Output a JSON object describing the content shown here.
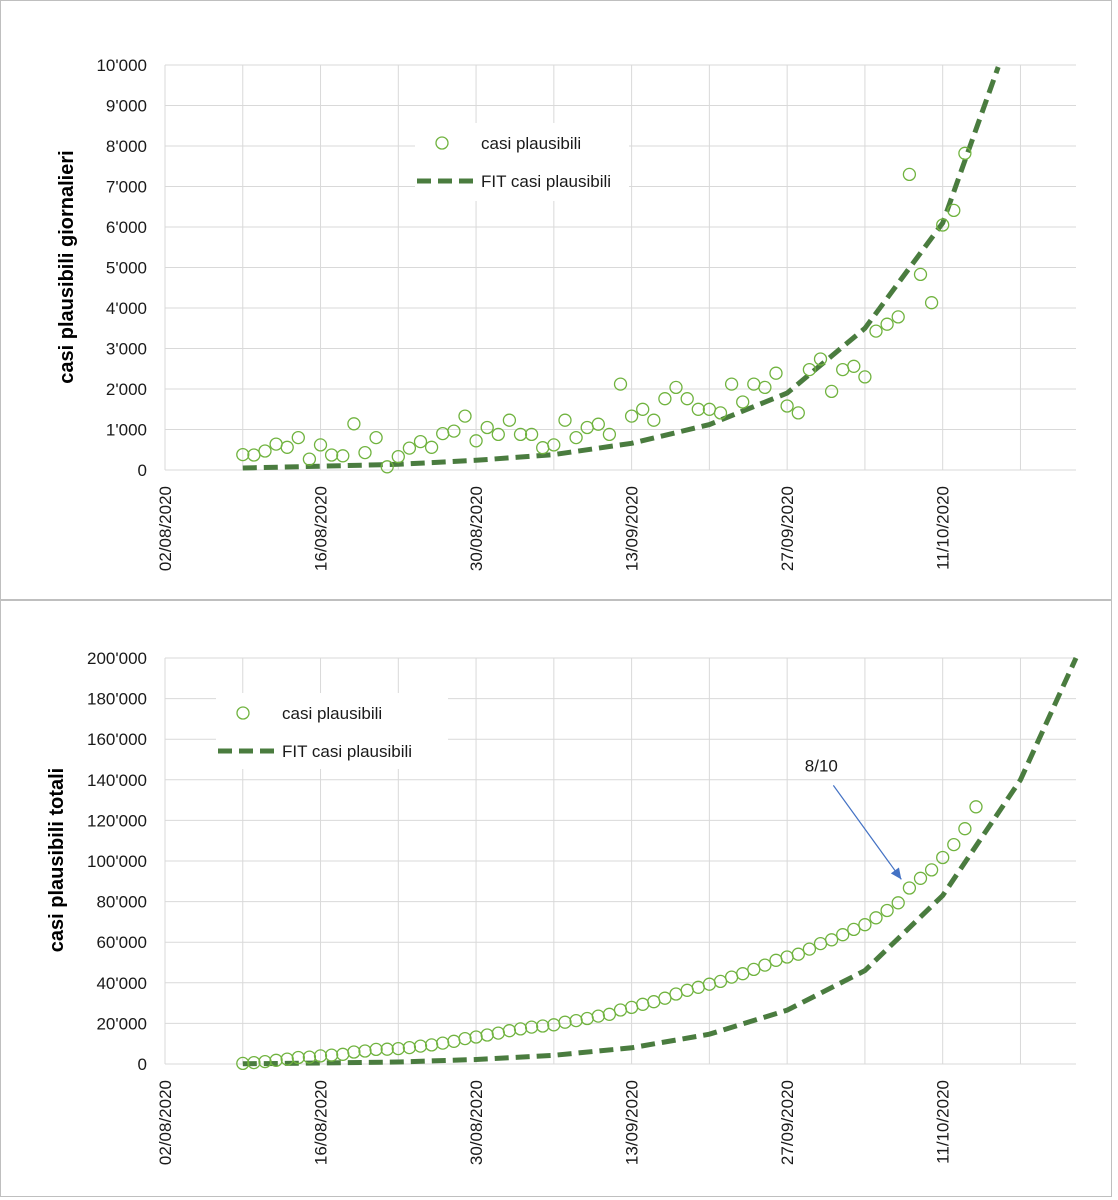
{
  "colors": {
    "marker": "#70b33f",
    "fit": "#4a7c3f",
    "grid": "#d9d9d9",
    "arrow": "#4472c4"
  },
  "chart_data": [
    {
      "type": "scatter",
      "ylabel": "casi plausibili giornalieri",
      "ylim": [
        0,
        10000
      ],
      "y_ticks": [
        "0",
        "1'000",
        "2'000",
        "3'000",
        "4'000",
        "5'000",
        "6'000",
        "7'000",
        "8'000",
        "9'000",
        "10'000"
      ],
      "xlim": [
        "2020-08-02",
        "2020-10-23"
      ],
      "x_ticks": [
        "02/08/2020",
        "16/08/2020",
        "30/08/2020",
        "13/09/2020",
        "27/09/2020",
        "11/10/2020"
      ],
      "grid": true,
      "legend_position": "top-center",
      "series": [
        {
          "name": "casi plausibili",
          "style": "open-circle",
          "points": [
            [
              "2020-08-09",
              380
            ],
            [
              "2020-08-10",
              370
            ],
            [
              "2020-08-11",
              470
            ],
            [
              "2020-08-12",
              640
            ],
            [
              "2020-08-13",
              560
            ],
            [
              "2020-08-14",
              800
            ],
            [
              "2020-08-15",
              270
            ],
            [
              "2020-08-16",
              620
            ],
            [
              "2020-08-17",
              370
            ],
            [
              "2020-08-18",
              350
            ],
            [
              "2020-08-19",
              1140
            ],
            [
              "2020-08-20",
              430
            ],
            [
              "2020-08-21",
              800
            ],
            [
              "2020-08-22",
              80
            ],
            [
              "2020-08-23",
              330
            ],
            [
              "2020-08-24",
              540
            ],
            [
              "2020-08-25",
              700
            ],
            [
              "2020-08-26",
              560
            ],
            [
              "2020-08-27",
              900
            ],
            [
              "2020-08-28",
              960
            ],
            [
              "2020-08-29",
              1330
            ],
            [
              "2020-08-30",
              720
            ],
            [
              "2020-08-31",
              1050
            ],
            [
              "2020-09-01",
              880
            ],
            [
              "2020-09-02",
              1230
            ],
            [
              "2020-09-03",
              880
            ],
            [
              "2020-09-04",
              880
            ],
            [
              "2020-09-05",
              550
            ],
            [
              "2020-09-06",
              620
            ],
            [
              "2020-09-07",
              1230
            ],
            [
              "2020-09-08",
              800
            ],
            [
              "2020-09-09",
              1050
            ],
            [
              "2020-09-10",
              1130
            ],
            [
              "2020-09-11",
              880
            ],
            [
              "2020-09-12",
              2120
            ],
            [
              "2020-09-13",
              1330
            ],
            [
              "2020-09-14",
              1500
            ],
            [
              "2020-09-15",
              1230
            ],
            [
              "2020-09-16",
              1760
            ],
            [
              "2020-09-17",
              2040
            ],
            [
              "2020-09-18",
              1760
            ],
            [
              "2020-09-19",
              1500
            ],
            [
              "2020-09-20",
              1500
            ],
            [
              "2020-09-21",
              1410
            ],
            [
              "2020-09-22",
              2120
            ],
            [
              "2020-09-23",
              1680
            ],
            [
              "2020-09-24",
              2120
            ],
            [
              "2020-09-25",
              2040
            ],
            [
              "2020-09-26",
              2390
            ],
            [
              "2020-09-27",
              1580
            ],
            [
              "2020-09-28",
              1410
            ],
            [
              "2020-09-29",
              2480
            ],
            [
              "2020-09-30",
              2740
            ],
            [
              "2020-10-01",
              1940
            ],
            [
              "2020-10-02",
              2480
            ],
            [
              "2020-10-03",
              2560
            ],
            [
              "2020-10-04",
              2300
            ],
            [
              "2020-10-05",
              3430
            ],
            [
              "2020-10-06",
              3600
            ],
            [
              "2020-10-07",
              3780
            ],
            [
              "2020-10-08",
              7300
            ],
            [
              "2020-10-09",
              4830
            ],
            [
              "2020-10-10",
              4130
            ],
            [
              "2020-10-11",
              6050
            ],
            [
              "2020-10-12",
              6410
            ],
            [
              "2020-10-13",
              7820
            ]
          ]
        },
        {
          "name": "FIT casi plausibili",
          "style": "dashed-line",
          "points": [
            [
              "2020-08-09",
              50
            ],
            [
              "2020-08-16",
              95
            ],
            [
              "2020-08-23",
              140
            ],
            [
              "2020-08-30",
              240
            ],
            [
              "2020-09-06",
              380
            ],
            [
              "2020-09-13",
              660
            ],
            [
              "2020-09-20",
              1120
            ],
            [
              "2020-09-27",
              1900
            ],
            [
              "2020-10-04",
              3500
            ],
            [
              "2020-10-11",
              6100
            ],
            [
              "2020-10-16",
              9950
            ]
          ]
        }
      ]
    },
    {
      "type": "scatter",
      "ylabel": "casi plausibili totali",
      "ylim": [
        0,
        200000
      ],
      "y_ticks": [
        "0",
        "20'000",
        "40'000",
        "60'000",
        "80'000",
        "100'000",
        "120'000",
        "140'000",
        "160'000",
        "180'000",
        "200'000"
      ],
      "xlim": [
        "2020-08-02",
        "2020-10-23"
      ],
      "x_ticks": [
        "02/08/2020",
        "16/08/2020",
        "30/08/2020",
        "13/09/2020",
        "27/09/2020",
        "11/10/2020"
      ],
      "grid": true,
      "legend_position": "top-left",
      "annotation": {
        "text": "8/10",
        "target": [
          "2020-10-08",
          88000
        ]
      },
      "series": [
        {
          "name": "casi plausibili",
          "style": "open-circle",
          "points": [
            [
              "2020-08-09",
              300
            ],
            [
              "2020-08-10",
              700
            ],
            [
              "2020-08-11",
              1200
            ],
            [
              "2020-08-12",
              1800
            ],
            [
              "2020-08-13",
              2400
            ],
            [
              "2020-08-14",
              3200
            ],
            [
              "2020-08-15",
              3400
            ],
            [
              "2020-08-16",
              4000
            ],
            [
              "2020-08-17",
              4400
            ],
            [
              "2020-08-18",
              4800
            ],
            [
              "2020-08-19",
              5900
            ],
            [
              "2020-08-20",
              6400
            ],
            [
              "2020-08-21",
              7200
            ],
            [
              "2020-08-22",
              7300
            ],
            [
              "2020-08-23",
              7600
            ],
            [
              "2020-08-24",
              8100
            ],
            [
              "2020-08-25",
              8800
            ],
            [
              "2020-08-26",
              9400
            ],
            [
              "2020-08-27",
              10300
            ],
            [
              "2020-08-28",
              11200
            ],
            [
              "2020-08-29",
              12500
            ],
            [
              "2020-08-30",
              13300
            ],
            [
              "2020-08-31",
              14300
            ],
            [
              "2020-09-01",
              15200
            ],
            [
              "2020-09-02",
              16400
            ],
            [
              "2020-09-03",
              17300
            ],
            [
              "2020-09-04",
              18200
            ],
            [
              "2020-09-05",
              18700
            ],
            [
              "2020-09-06",
              19300
            ],
            [
              "2020-09-07",
              20600
            ],
            [
              "2020-09-08",
              21400
            ],
            [
              "2020-09-09",
              22400
            ],
            [
              "2020-09-10",
              23600
            ],
            [
              "2020-09-11",
              24500
            ],
            [
              "2020-09-12",
              26600
            ],
            [
              "2020-09-13",
              27900
            ],
            [
              "2020-09-14",
              29400
            ],
            [
              "2020-09-15",
              30700
            ],
            [
              "2020-09-16",
              32400
            ],
            [
              "2020-09-17",
              34500
            ],
            [
              "2020-09-18",
              36300
            ],
            [
              "2020-09-19",
              37800
            ],
            [
              "2020-09-20",
              39300
            ],
            [
              "2020-09-21",
              40700
            ],
            [
              "2020-09-22",
              42800
            ],
            [
              "2020-09-23",
              44500
            ],
            [
              "2020-09-24",
              46600
            ],
            [
              "2020-09-25",
              48700
            ],
            [
              "2020-09-26",
              51100
            ],
            [
              "2020-09-27",
              52700
            ],
            [
              "2020-09-28",
              54100
            ],
            [
              "2020-09-29",
              56600
            ],
            [
              "2020-09-30",
              59300
            ],
            [
              "2020-10-01",
              61200
            ],
            [
              "2020-10-02",
              63700
            ],
            [
              "2020-10-03",
              66300
            ],
            [
              "2020-10-04",
              68600
            ],
            [
              "2020-10-05",
              72000
            ],
            [
              "2020-10-06",
              75600
            ],
            [
              "2020-10-07",
              79400
            ],
            [
              "2020-10-08",
              86700
            ],
            [
              "2020-10-09",
              91500
            ],
            [
              "2020-10-10",
              95600
            ],
            [
              "2020-10-11",
              101700
            ],
            [
              "2020-10-12",
              108100
            ],
            [
              "2020-10-13",
              115900
            ],
            [
              "2020-10-14",
              126700
            ]
          ]
        },
        {
          "name": "FIT casi plausibili",
          "style": "dashed-line",
          "points": [
            [
              "2020-08-09",
              100
            ],
            [
              "2020-08-16",
              500
            ],
            [
              "2020-08-23",
              1000
            ],
            [
              "2020-08-30",
              2200
            ],
            [
              "2020-09-06",
              4300
            ],
            [
              "2020-09-13",
              8000
            ],
            [
              "2020-09-20",
              14700
            ],
            [
              "2020-09-27",
              26500
            ],
            [
              "2020-10-04",
              46000
            ],
            [
              "2020-10-11",
              83000
            ],
            [
              "2020-10-18",
              140000
            ],
            [
              "2020-10-23",
              200000
            ]
          ]
        }
      ]
    }
  ]
}
